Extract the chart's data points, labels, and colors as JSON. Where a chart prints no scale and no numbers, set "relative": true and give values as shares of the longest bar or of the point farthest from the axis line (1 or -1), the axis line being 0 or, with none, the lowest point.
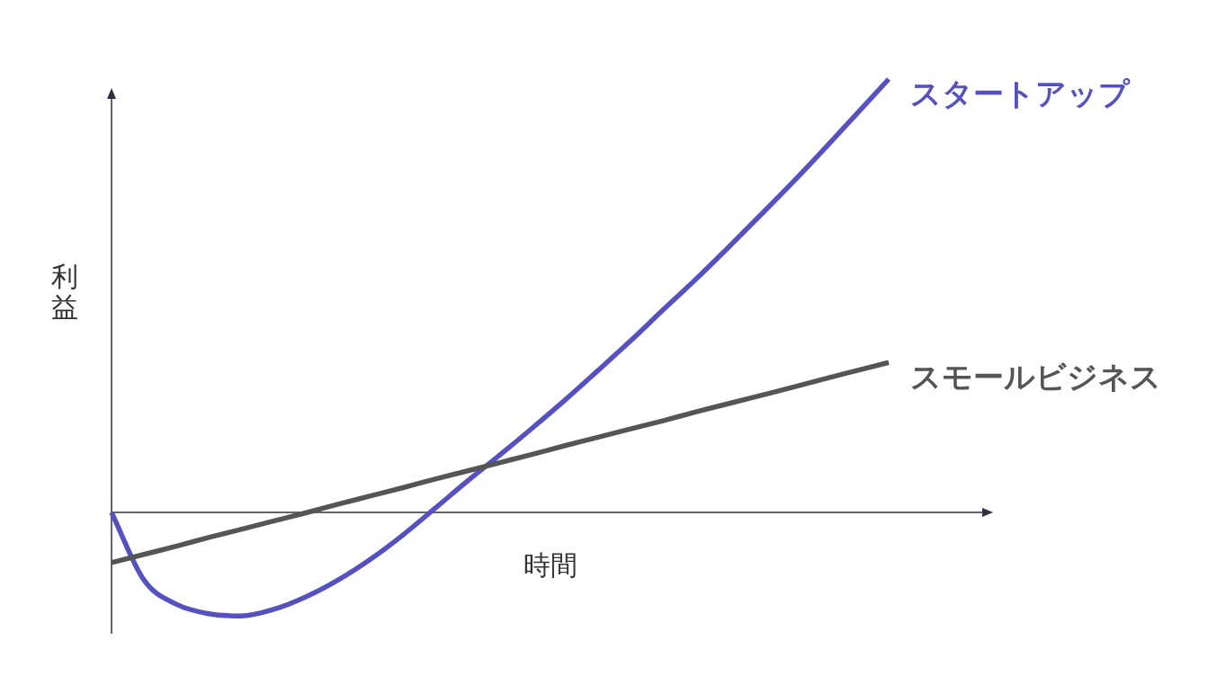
{
  "chart_data": {
    "type": "line",
    "relative": true,
    "xlabel": "時間",
    "ylabel": "利益",
    "categories": [
      null,
      null,
      null,
      null,
      null,
      null,
      null,
      null,
      null,
      null,
      null,
      null,
      null,
      null,
      null,
      null,
      null,
      null,
      null,
      null,
      null,
      null,
      null,
      null,
      null
    ],
    "series": [
      {
        "name": "スタートアップ",
        "color": "#5551c0",
        "values": [
          0,
          -0.156,
          -0.212,
          -0.234,
          -0.239,
          -0.224,
          -0.195,
          -0.156,
          -0.108,
          -0.052,
          0.01,
          0.073,
          0.133,
          0.195,
          0.259,
          0.326,
          0.394,
          0.465,
          0.535,
          0.608,
          0.683,
          0.759,
          0.838,
          0.919,
          1
        ]
      },
      {
        "name": "スモールビジネス",
        "color": "#555555",
        "values": [
          -0.116,
          -0.097,
          -0.078,
          -0.058,
          -0.039,
          -0.02,
          -0.001,
          0.019,
          0.038,
          0.057,
          0.077,
          0.096,
          0.115,
          0.134,
          0.154,
          0.173,
          0.192,
          0.211,
          0.231,
          0.25,
          0.269,
          0.288,
          0.308,
          0.327,
          0.346
        ]
      }
    ]
  }
}
